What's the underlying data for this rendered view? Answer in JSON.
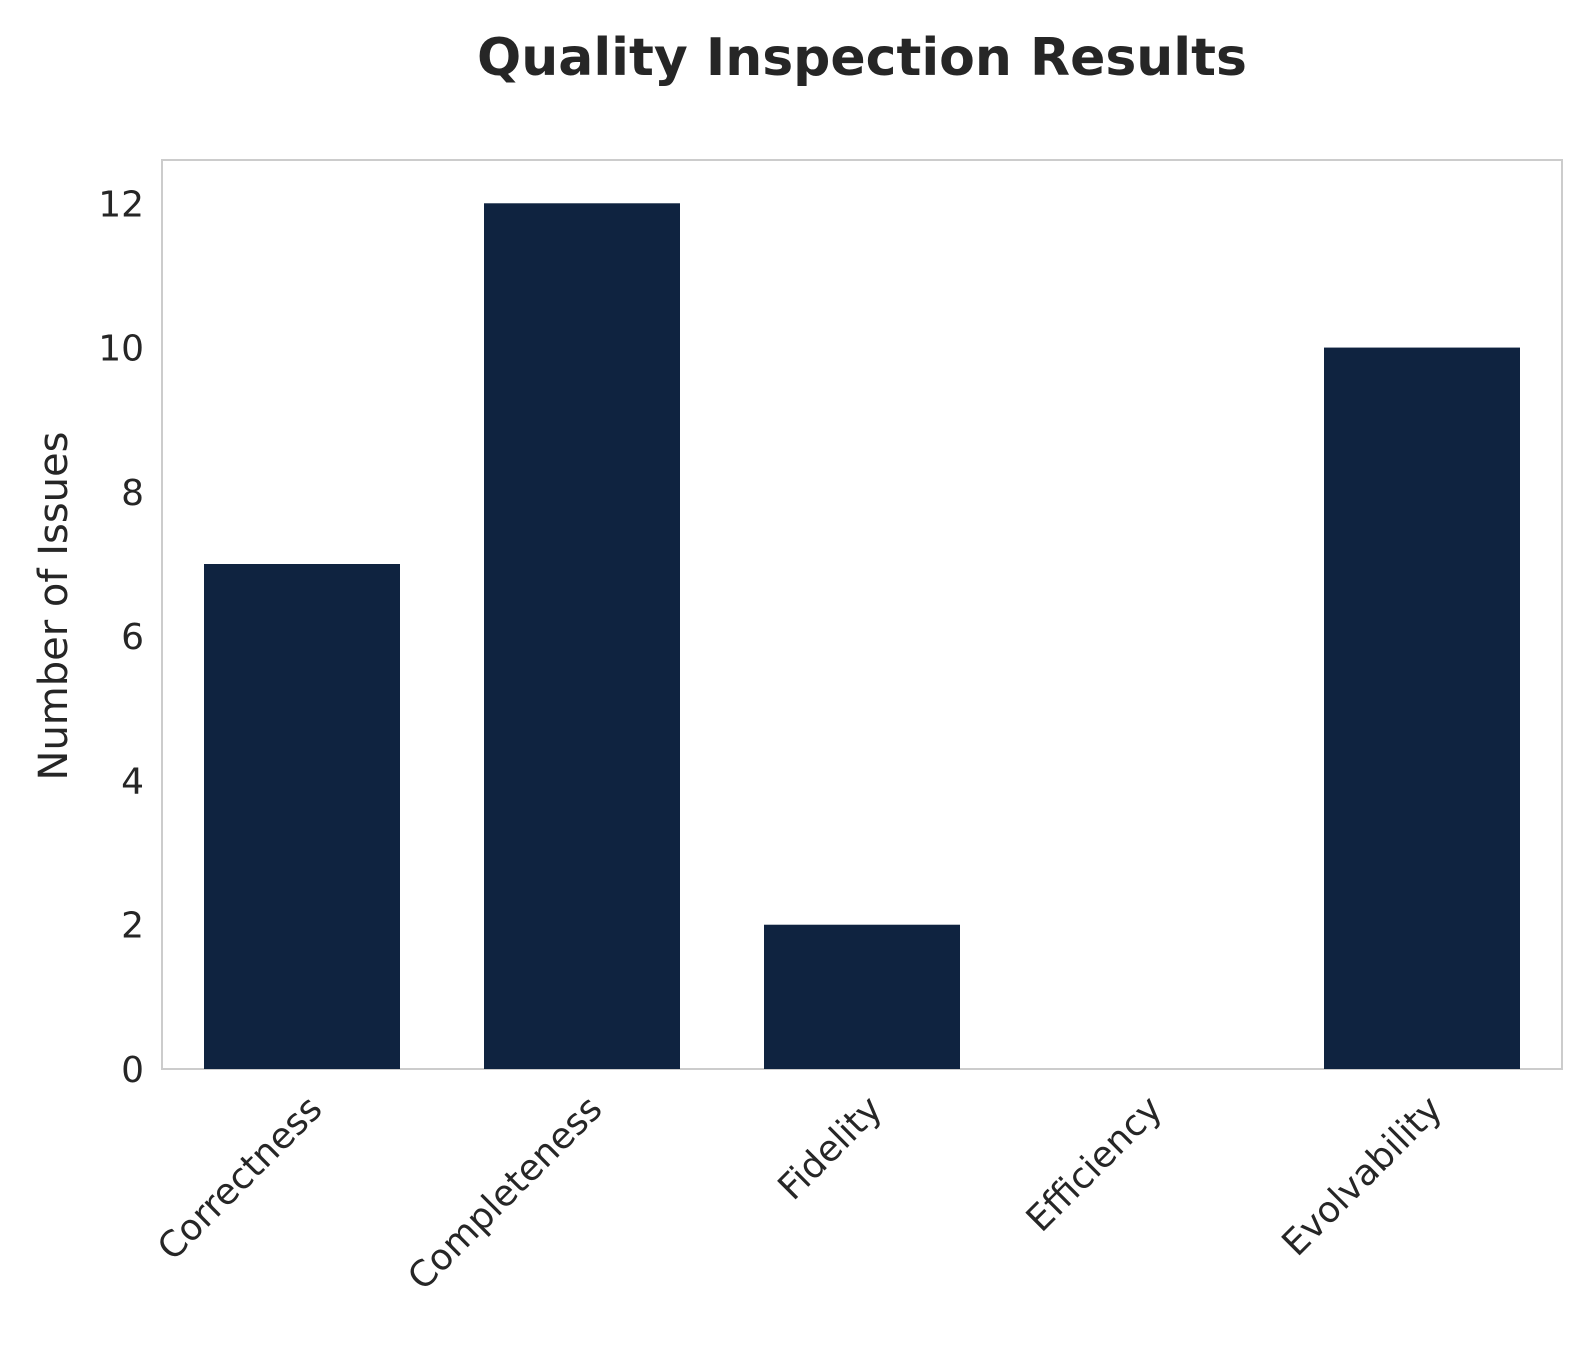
{
  "chart_data": {
    "type": "bar",
    "title": "Quality Inspection Results",
    "xlabel": "",
    "ylabel": "Number of Issues",
    "categories": [
      "Correctness",
      "Completeness",
      "Fidelity",
      "Efficiency",
      "Evolvability"
    ],
    "values": [
      7,
      12,
      2,
      0,
      10
    ],
    "ylim": [
      0,
      12.6
    ],
    "yticks": [
      0,
      2,
      4,
      6,
      8,
      10,
      12
    ],
    "grid": false,
    "legend": "none",
    "bar_color": "#0f2340",
    "frame_color": "#cccccc",
    "text_color": "#262626"
  }
}
